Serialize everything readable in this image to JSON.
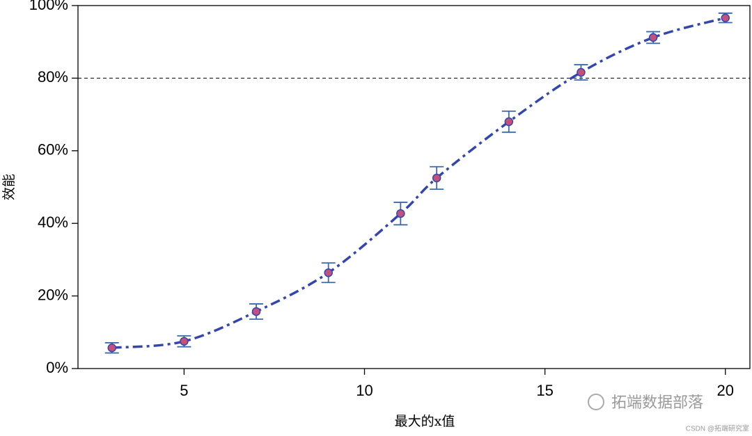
{
  "chart_data": {
    "type": "line",
    "ylabel": "效能",
    "xlabel": "最大的x值",
    "x": [
      3,
      5,
      7,
      9,
      11,
      12,
      14,
      16,
      18,
      20
    ],
    "series": [
      {
        "color": "#3346b0",
        "marker_color": "#c4507c",
        "error_color": "#3b6aad",
        "values": [
          5.7,
          7.5,
          15.7,
          26.4,
          42.7,
          52.5,
          68.0,
          81.6,
          91.2,
          96.6
        ],
        "errors": [
          1.4,
          1.5,
          2.1,
          2.7,
          3.1,
          3.1,
          2.9,
          2.1,
          1.6,
          1.3
        ]
      }
    ],
    "xlim": [
      2.06,
      20.68
    ],
    "ylim": [
      0,
      100
    ],
    "xticks": [
      5,
      10,
      15,
      20
    ],
    "yticks": [
      {
        "value": 0,
        "label": "0%"
      },
      {
        "value": 20,
        "label": "20%"
      },
      {
        "value": 40,
        "label": "40%"
      },
      {
        "value": 60,
        "label": "60%"
      },
      {
        "value": 80,
        "label": "80%"
      },
      {
        "value": 100,
        "label": "100%"
      }
    ],
    "hline": 80,
    "watermarks": [
      "拓端数据部落",
      "CSDN @拓端研究室"
    ]
  }
}
